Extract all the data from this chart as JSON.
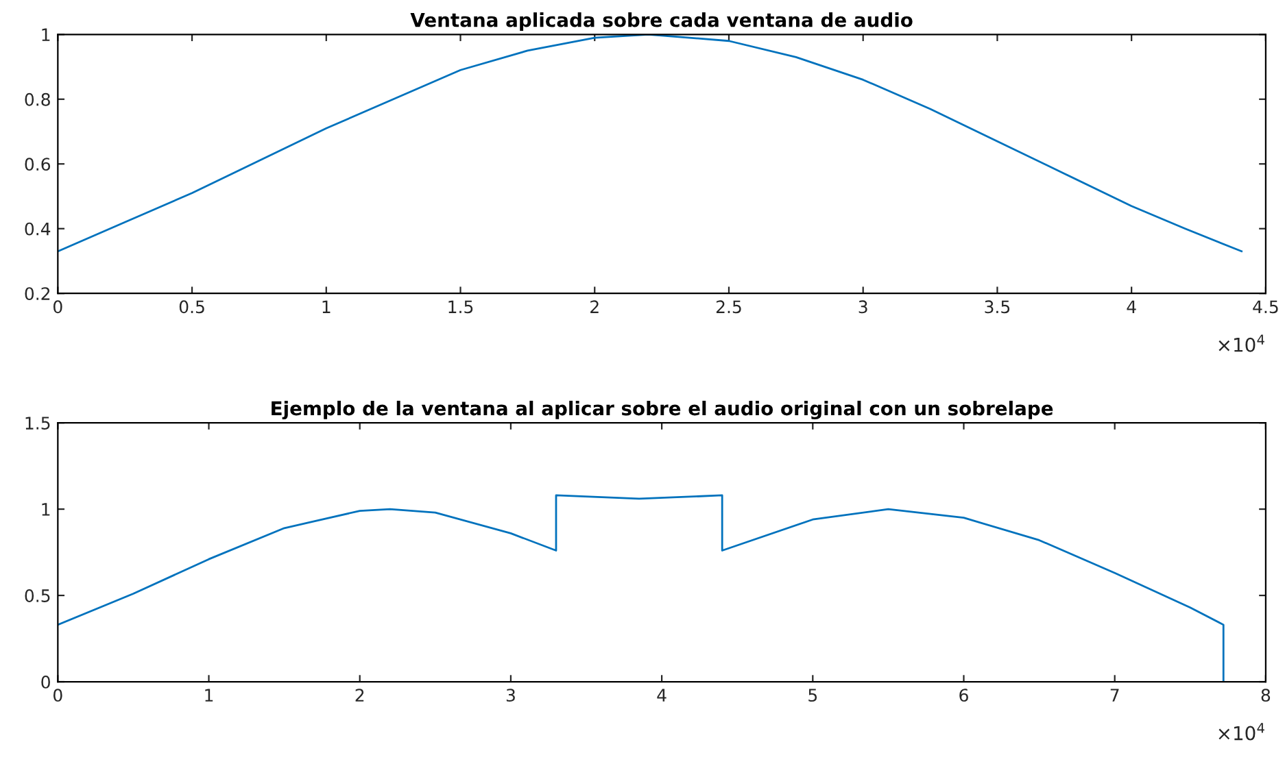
{
  "chart_data": [
    {
      "type": "line",
      "title": "Ventana aplicada sobre cada ventana de audio",
      "x": [
        0,
        0.25,
        0.5,
        0.75,
        1.0,
        1.25,
        1.5,
        1.75,
        2.0,
        2.2,
        2.5,
        2.75,
        3.0,
        3.25,
        3.5,
        3.75,
        4.0,
        4.2,
        4.41
      ],
      "series": [
        {
          "color": "#0072bd",
          "values": [
            0.33,
            0.42,
            0.51,
            0.61,
            0.71,
            0.8,
            0.89,
            0.95,
            0.99,
            1.0,
            0.98,
            0.93,
            0.86,
            0.77,
            0.67,
            0.57,
            0.47,
            0.4,
            0.33
          ]
        }
      ],
      "xlim": [
        0,
        4.5
      ],
      "xticks": [
        0,
        0.5,
        1,
        1.5,
        2,
        2.5,
        3,
        3.5,
        4,
        4.5
      ],
      "ylim": [
        0.2,
        1
      ],
      "yticks": [
        0.2,
        0.4,
        0.6,
        0.8,
        1
      ],
      "grid": false,
      "annotations": [
        "×10$^{4}$"
      ]
    },
    {
      "type": "line",
      "title": "Ejemplo de la ventana al aplicar sobre el audio original con un sobrelape",
      "x": [
        0,
        0.5,
        1.0,
        1.5,
        2.0,
        2.2,
        2.5,
        3.0,
        3.3,
        3.3,
        3.85,
        4.4,
        4.4,
        5.0,
        5.5,
        6.0,
        6.5,
        7.0,
        7.5,
        7.72,
        7.72
      ],
      "series": [
        {
          "color": "#0072bd",
          "values": [
            0.33,
            0.51,
            0.71,
            0.89,
            0.99,
            1.0,
            0.98,
            0.86,
            0.76,
            1.08,
            1.06,
            1.08,
            0.76,
            0.94,
            1.0,
            0.95,
            0.82,
            0.63,
            0.43,
            0.33,
            0
          ]
        }
      ],
      "xlim": [
        0,
        8
      ],
      "xticks": [
        0,
        1,
        2,
        3,
        4,
        5,
        6,
        7,
        8
      ],
      "ylim": [
        0,
        1.5
      ],
      "yticks": [
        0,
        0.5,
        1,
        1.5
      ],
      "grid": false,
      "annotations": [
        "×10$^{4}$"
      ]
    }
  ]
}
